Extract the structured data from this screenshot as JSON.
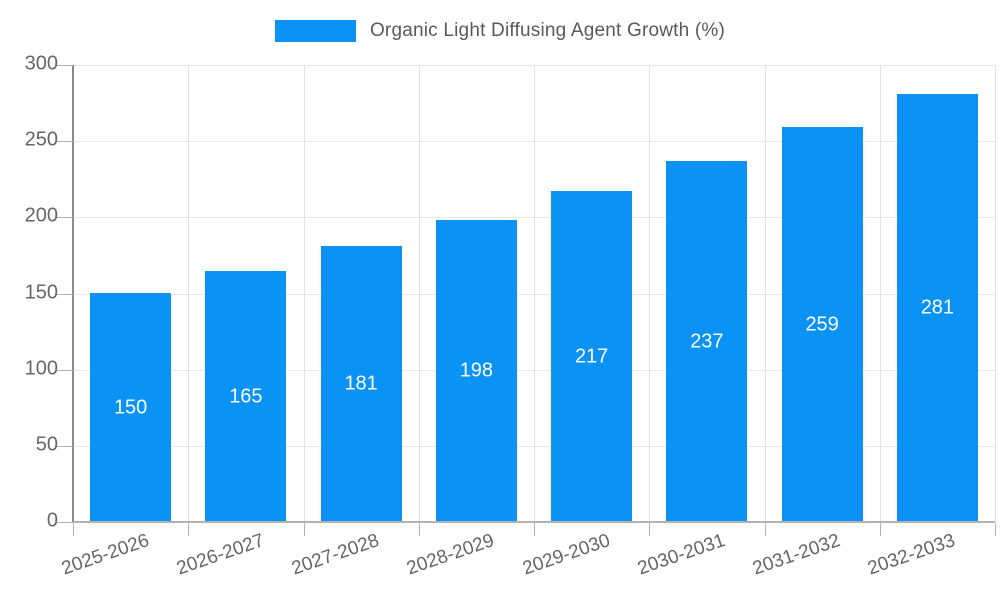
{
  "legend": {
    "label": "Organic Light Diffusing Agent Growth (%)"
  },
  "colors": {
    "bar": "#0a92f4",
    "grid_horizontal": "#e8e8e8",
    "grid_vertical": "#e2e2e2",
    "axis_y": "#8a8a8a",
    "axis_x": "#b3b3b3",
    "tick": "#b3b3b3",
    "tick_label_text": "#666666",
    "legend_text": "#595959",
    "value_label_text": "#ffffff",
    "background": "#ffffff"
  },
  "chart_data": {
    "type": "bar",
    "title": "",
    "xlabel": "",
    "ylabel": "",
    "categories": [
      "2025-2026",
      "2026-2027",
      "2027-2028",
      "2028-2029",
      "2029-2030",
      "2030-2031",
      "2031-2032",
      "2032-2033"
    ],
    "series": [
      {
        "name": "Organic Light Diffusing Agent Growth (%)",
        "values": [
          150,
          165,
          181,
          198,
          217,
          237,
          259,
          281
        ]
      }
    ],
    "ylim": [
      0,
      300
    ],
    "yticks": [
      0,
      50,
      100,
      150,
      200,
      250,
      300
    ],
    "grid": true,
    "legend_position": "top",
    "value_labels": "inside-center",
    "xlabel_rotation_deg": -19
  }
}
